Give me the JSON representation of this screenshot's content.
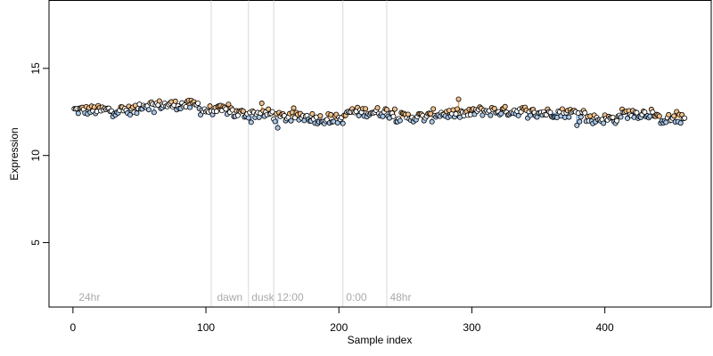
{
  "chart_data": {
    "type": "scatter",
    "title": "",
    "xlabel": "Sample index",
    "ylabel": "Expression",
    "xlim": [
      -18,
      480
    ],
    "ylim": [
      1.3,
      18.9
    ],
    "x_ticks": [
      0,
      100,
      200,
      300,
      400
    ],
    "y_ticks": [
      5,
      10,
      15
    ],
    "grid": false,
    "legend": "none",
    "colors": {
      "point_default": "#ffffff",
      "point_high": "#f2c08a",
      "point_low": "#a9c8ea",
      "point_stroke": "#000000",
      "dev_high": "#f0a65c",
      "dev_low": "#7fa9dd",
      "separator": "#d9d9d9",
      "group_label": "#aaaaaa"
    },
    "group_separators": [
      104,
      132,
      151,
      203,
      236
    ],
    "group_labels": [
      {
        "text": "24hr",
        "x": 3
      },
      {
        "text": "dawn",
        "x": 107
      },
      {
        "text": "dusk",
        "x": 133
      },
      {
        "text": "12:00",
        "x": 152
      },
      {
        "text": "0:00",
        "x": 204
      },
      {
        "text": "48hr",
        "x": 237
      }
    ],
    "segments": [
      {
        "from": 1,
        "to": 49,
        "mean": 12.6
      },
      {
        "from": 50,
        "to": 95,
        "mean": 12.9
      },
      {
        "from": 96,
        "to": 120,
        "mean": 12.6
      },
      {
        "from": 121,
        "to": 150,
        "mean": 12.4
      },
      {
        "from": 151,
        "to": 180,
        "mean": 12.2
      },
      {
        "from": 181,
        "to": 205,
        "mean": 12.1
      },
      {
        "from": 206,
        "to": 240,
        "mean": 12.5
      },
      {
        "from": 241,
        "to": 270,
        "mean": 12.2
      },
      {
        "from": 271,
        "to": 300,
        "mean": 12.4
      },
      {
        "from": 301,
        "to": 340,
        "mean": 12.55
      },
      {
        "from": 341,
        "to": 385,
        "mean": 12.45
      },
      {
        "from": 386,
        "to": 410,
        "mean": 12.1
      },
      {
        "from": 411,
        "to": 437,
        "mean": 12.4
      },
      {
        "from": 438,
        "to": 460,
        "mean": 12.1
      }
    ]
  }
}
